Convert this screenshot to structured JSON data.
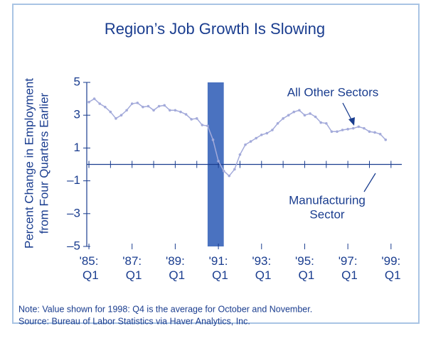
{
  "chart_data": {
    "type": "line",
    "title": "Region’s Job Growth Is Slowing",
    "y_label": [
      "Percent Change in Employment",
      "from Four Quarters Earlier"
    ],
    "notes": [
      "Note: Value shown for 1998: Q4 is the average for October and November.",
      "Source: Bureau of Labor Statistics via Haver Analytics, Inc."
    ],
    "annotations": [
      {
        "text": "All Other Sectors"
      },
      {
        "text": "Manufacturing"
      },
      {
        "text": "Sector"
      }
    ],
    "shaded_band": {
      "range": [
        1990.5,
        1991.25
      ],
      "color": "#4a72c0"
    },
    "x": [
      1985,
      1985.25,
      1985.5,
      1985.75,
      1986,
      1986.25,
      1986.5,
      1986.75,
      1987,
      1987.25,
      1987.5,
      1987.75,
      1988,
      1988.25,
      1988.5,
      1988.75,
      1989,
      1989.25,
      1989.5,
      1989.75,
      1990,
      1990.25,
      1990.5,
      1990.75,
      1991,
      1991.25,
      1991.5,
      1991.75,
      1992,
      1992.25,
      1992.5,
      1992.75,
      1993,
      1993.25,
      1993.5,
      1993.75,
      1994,
      1994.25,
      1994.5,
      1994.75,
      1995,
      1995.25,
      1995.5,
      1995.75,
      1996,
      1996.25,
      1996.5,
      1996.75,
      1997,
      1997.25,
      1997.5,
      1997.75,
      1998,
      1998.25,
      1998.5,
      1998.75
    ],
    "series": [
      {
        "name": "All Other Sectors",
        "color": "#a3aada",
        "values": [
          3.8,
          4.0,
          3.7,
          3.5,
          3.2,
          2.8,
          3.0,
          3.3,
          3.7,
          3.75,
          3.5,
          3.55,
          3.3,
          3.55,
          3.6,
          3.3,
          3.3,
          3.2,
          3.05,
          2.75,
          2.8,
          2.4,
          2.35,
          1.5,
          0.2,
          -0.4,
          -0.7,
          -0.3,
          0.6,
          1.2,
          1.4,
          1.6,
          1.8,
          1.9,
          2.1,
          2.5,
          2.8,
          3.0,
          3.2,
          3.3,
          3.0,
          3.1,
          2.9,
          2.55,
          2.5,
          2.0,
          2.0,
          2.1,
          2.15,
          2.2,
          2.3,
          2.2,
          2.0,
          1.95,
          1.85,
          1.5
        ]
      }
    ],
    "xlim": [
      1984.9,
      1999.5
    ],
    "xticks": [
      {
        "value": 1985,
        "label": "'85: Q1"
      },
      {
        "value": 1987,
        "label": "'87: Q1"
      },
      {
        "value": 1989,
        "label": "'89: Q1"
      },
      {
        "value": 1991,
        "label": "'91: Q1"
      },
      {
        "value": 1993,
        "label": "'93: Q1"
      },
      {
        "value": 1995,
        "label": "'95: Q1"
      },
      {
        "value": 1997,
        "label": "'97: Q1"
      },
      {
        "value": 1999,
        "label": "'99: Q1"
      }
    ],
    "xminorticks": [
      1986,
      1988,
      1990,
      1992,
      1994,
      1996,
      1998
    ],
    "ylim": [
      -5,
      5
    ],
    "yticks": [
      5,
      3,
      1,
      {
        "value": -1,
        "label": "–1"
      },
      {
        "value": -3,
        "label": "–3"
      },
      {
        "value": -5,
        "label": "–5"
      }
    ]
  }
}
